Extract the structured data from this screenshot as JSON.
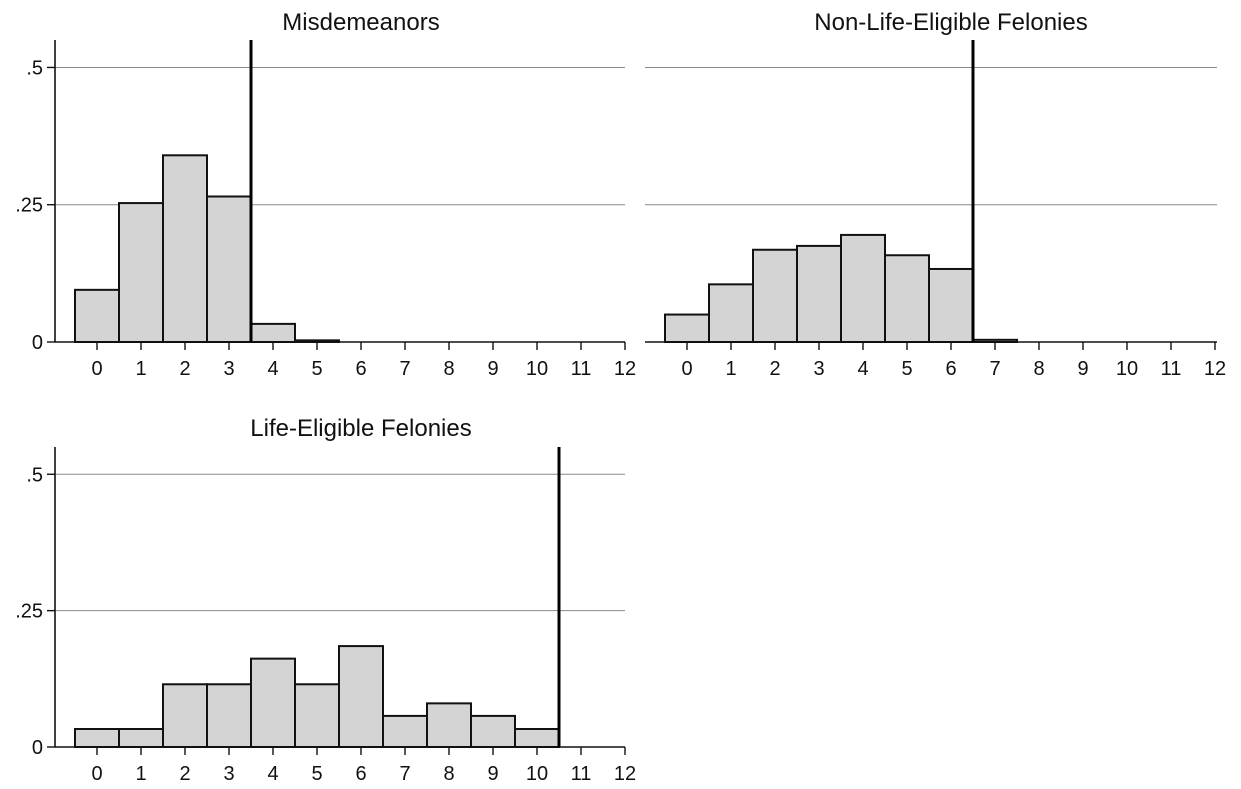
{
  "chart_data": [
    {
      "type": "bar",
      "title": "Misdemeanors",
      "x": [
        0,
        1,
        2,
        3,
        4,
        5,
        6,
        7,
        8,
        9,
        10,
        11,
        12
      ],
      "values": [
        0.095,
        0.253,
        0.34,
        0.265,
        0.033,
        0.003,
        0,
        0,
        0,
        0,
        0,
        0,
        0
      ],
      "x_ticks": [
        "0",
        "1",
        "2",
        "3",
        "4",
        "5",
        "6",
        "7",
        "8",
        "9",
        "10",
        "11",
        "12"
      ],
      "y_ticks": [
        {
          "value": 0,
          "label": "0"
        },
        {
          "value": 0.25,
          "label": ".25"
        },
        {
          "value": 0.5,
          "label": ".5"
        }
      ],
      "ylim": [
        0,
        0.55
      ],
      "xlim": [
        -0.5,
        12
      ],
      "cutoff": 3.5,
      "grid": true
    },
    {
      "type": "bar",
      "title": "Non-Life-Eligible Felonies",
      "x": [
        0,
        1,
        2,
        3,
        4,
        5,
        6,
        7,
        8,
        9,
        10,
        11,
        12
      ],
      "values": [
        0.05,
        0.105,
        0.168,
        0.175,
        0.195,
        0.158,
        0.133,
        0.004,
        0,
        0,
        0,
        0,
        0
      ],
      "x_ticks": [
        "0",
        "1",
        "2",
        "3",
        "4",
        "5",
        "6",
        "7",
        "8",
        "9",
        "10",
        "11",
        "12"
      ],
      "y_ticks": [
        {
          "value": 0,
          "label": "0"
        },
        {
          "value": 0.25,
          "label": ".25"
        },
        {
          "value": 0.5,
          "label": ".5"
        }
      ],
      "ylim": [
        0,
        0.55
      ],
      "xlim": [
        -0.5,
        12
      ],
      "cutoff": 6.5,
      "grid": true
    },
    {
      "type": "bar",
      "title": "Life-Eligible Felonies",
      "x": [
        0,
        1,
        2,
        3,
        4,
        5,
        6,
        7,
        8,
        9,
        10,
        11,
        12
      ],
      "values": [
        0.033,
        0.033,
        0.115,
        0.115,
        0.162,
        0.115,
        0.185,
        0.057,
        0.08,
        0.057,
        0.033,
        0,
        0
      ],
      "x_ticks": [
        "0",
        "1",
        "2",
        "3",
        "4",
        "5",
        "6",
        "7",
        "8",
        "9",
        "10",
        "11",
        "12"
      ],
      "y_ticks": [
        {
          "value": 0,
          "label": "0"
        },
        {
          "value": 0.25,
          "label": ".25"
        },
        {
          "value": 0.5,
          "label": ".5"
        }
      ],
      "ylim": [
        0,
        0.55
      ],
      "xlim": [
        -0.5,
        12
      ],
      "cutoff": 10.5,
      "grid": true
    }
  ]
}
